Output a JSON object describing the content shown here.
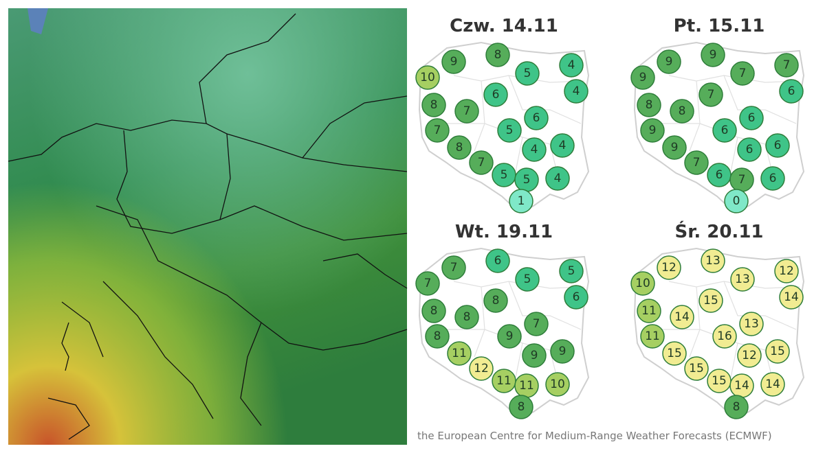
{
  "panels": [
    {
      "title": "Czw. 14.11",
      "values": [
        10,
        9,
        8,
        5,
        4,
        4,
        6,
        8,
        7,
        6,
        7,
        5,
        8,
        4,
        4,
        7,
        5,
        5,
        4,
        1
      ]
    },
    {
      "title": "Pt. 15.11",
      "values": [
        9,
        9,
        9,
        7,
        7,
        6,
        7,
        8,
        8,
        6,
        9,
        6,
        9,
        6,
        6,
        7,
        6,
        7,
        6,
        0
      ]
    },
    {
      "title": "Wt. 19.11",
      "values": [
        7,
        7,
        6,
        5,
        5,
        6,
        8,
        8,
        8,
        7,
        8,
        9,
        11,
        9,
        9,
        12,
        11,
        11,
        10,
        8
      ]
    },
    {
      "title": "Śr. 20.11",
      "values": [
        10,
        12,
        13,
        13,
        12,
        14,
        15,
        11,
        14,
        13,
        11,
        16,
        15,
        12,
        15,
        15,
        15,
        14,
        14,
        8
      ]
    }
  ],
  "footer": "the European Centre for Medium-Range Weather Forecasts (ECMWF)"
}
